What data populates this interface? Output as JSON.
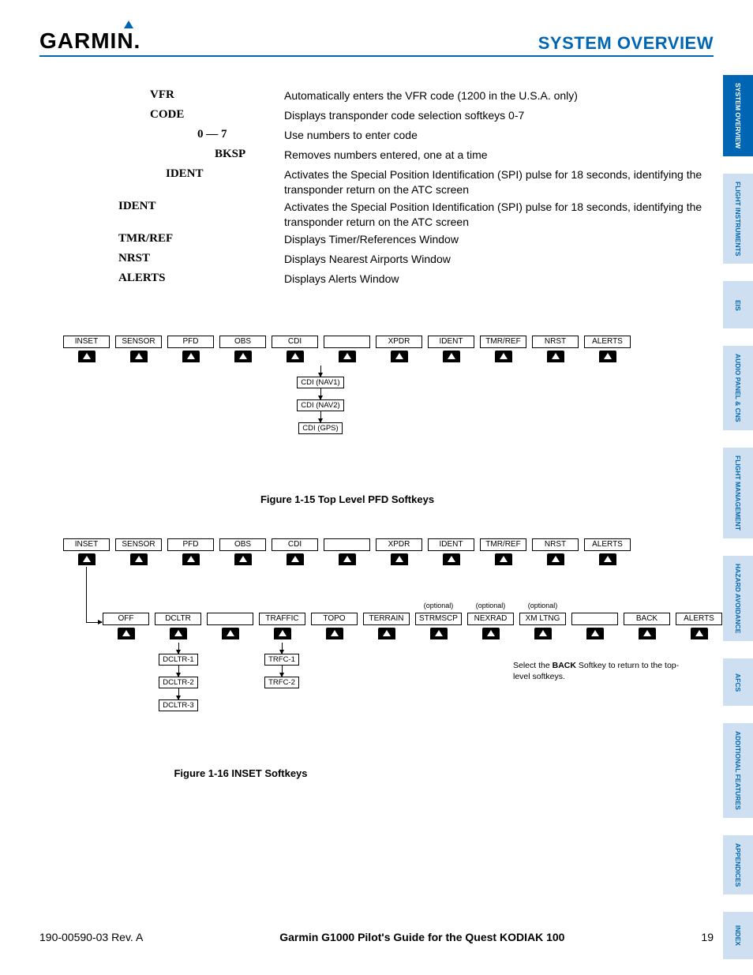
{
  "colors": {
    "brand": "#0066b3",
    "tab_bg": "#cddff0",
    "text": "#000000",
    "page_bg": "#ffffff"
  },
  "header": {
    "logo_text": "GARMIN",
    "page_title": "SYSTEM OVERVIEW"
  },
  "tabs": [
    {
      "label": "SYSTEM OVERVIEW",
      "active": true
    },
    {
      "label": "FLIGHT INSTRUMENTS",
      "active": false
    },
    {
      "label": "EIS",
      "active": false
    },
    {
      "label": "AUDIO PANEL & CNS",
      "active": false
    },
    {
      "label": "FLIGHT MANAGEMENT",
      "active": false
    },
    {
      "label": "HAZARD AVOIDANCE",
      "active": false
    },
    {
      "label": "AFCS",
      "active": false
    },
    {
      "label": "ADDITIONAL FEATURES",
      "active": false
    },
    {
      "label": "APPENDICES",
      "active": false
    },
    {
      "label": "INDEX",
      "active": false
    }
  ],
  "definitions": [
    {
      "indent": "ind1",
      "term": "VFR",
      "desc": "Automatically enters the VFR code (1200 in the U.S.A. only)"
    },
    {
      "indent": "ind1",
      "term": "CODE",
      "desc": "Displays transponder code selection softkeys 0-7"
    },
    {
      "indent": "ind3",
      "term": "0 — 7",
      "desc": "Use numbers to enter code"
    },
    {
      "indent": "ind4",
      "term": "BKSP",
      "desc": "Removes numbers entered, one at a time"
    },
    {
      "indent": "ind2",
      "term": "IDENT",
      "desc": "Activates the Special Position Identification (SPI) pulse for 18 seconds, identifying the transponder return on the ATC screen"
    },
    {
      "indent": "ind0",
      "term": "IDENT",
      "desc": "Activates the Special Position Identification (SPI) pulse for 18 seconds, identifying the transponder return on the ATC screen"
    },
    {
      "indent": "ind0",
      "term": "TMR/REF",
      "desc": "Displays Timer/References Window"
    },
    {
      "indent": "ind0",
      "term": "NRST",
      "desc": "Displays Nearest Airports Window"
    },
    {
      "indent": "ind0",
      "term": "ALERTS",
      "desc": "Displays Alerts Window"
    }
  ],
  "fig15": {
    "caption": "Figure 1-15  Top Level PFD Softkeys",
    "row": [
      "INSET",
      "SENSOR",
      "PFD",
      "OBS",
      "CDI",
      "",
      "XPDR",
      "IDENT",
      "TMR/REF",
      "NRST",
      "ALERTS"
    ],
    "cdi_stack": [
      "CDI (NAV1)",
      "CDI (NAV2)",
      "CDI (GPS)"
    ]
  },
  "fig16": {
    "caption": "Figure 1-16  INSET Softkeys",
    "row1": [
      "INSET",
      "SENSOR",
      "PFD",
      "OBS",
      "CDI",
      "",
      "XPDR",
      "IDENT",
      "TMR/REF",
      "NRST",
      "ALERTS"
    ],
    "optional_label": "(optional)",
    "row2": [
      "OFF",
      "DCLTR",
      "",
      "TRAFFIC",
      "TOPO",
      "TERRAIN",
      "STRMSCP",
      "NEXRAD",
      "XM LTNG",
      "",
      "BACK",
      "ALERTS"
    ],
    "dcltr_stack": [
      "DCLTR-1",
      "DCLTR-2",
      "DCLTR-3"
    ],
    "trfc_stack": [
      "TRFC-1",
      "TRFC-2"
    ],
    "note_pre": "Select the ",
    "note_bold": "BACK",
    "note_post": " Softkey to return to the top-level softkeys."
  },
  "footer": {
    "docnum": "190-00590-03  Rev. A",
    "title": "Garmin G1000 Pilot's Guide for the Quest KODIAK 100",
    "page": "19"
  }
}
